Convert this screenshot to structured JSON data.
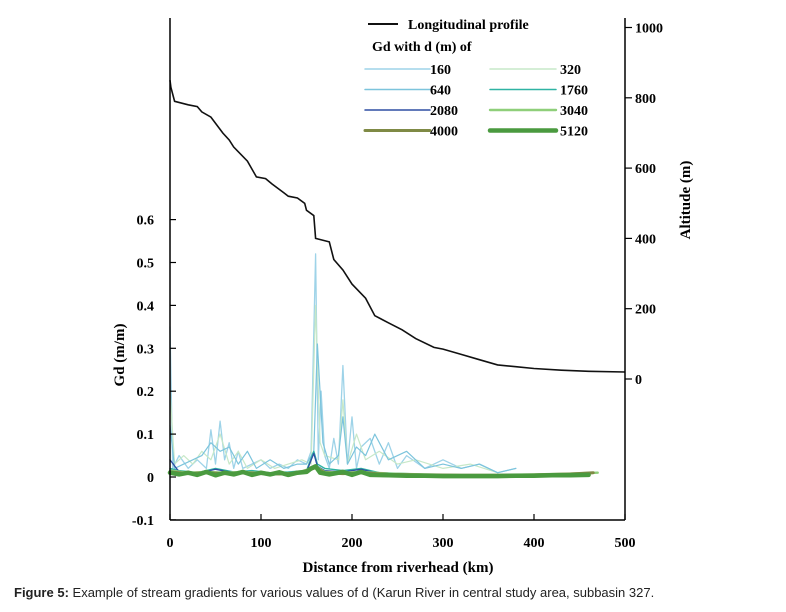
{
  "chart_data": {
    "type": "line",
    "xlabel": "Distance from riverhead (km)",
    "ylabel": "Gd (m/m)",
    "y2label": "Altitude (m)",
    "xlim": [
      0,
      500
    ],
    "ylim": [
      -0.1,
      0.6
    ],
    "y2lim": [
      0,
      1000
    ],
    "x_ticks": [
      "0",
      "100",
      "200",
      "300",
      "400",
      "500"
    ],
    "y_ticks": [
      "-0.1",
      "0",
      "0.1",
      "0.2",
      "0.3",
      "0.4",
      "0.5",
      "0.6"
    ],
    "y2_ticks": [
      "0",
      "200",
      "400",
      "600",
      "800",
      "1000"
    ],
    "legend_title": "Gd with d (m) of",
    "legend_position": "top-right",
    "profile": {
      "name": "Longitudinal profile",
      "color": "#111111",
      "axis": "right",
      "x": [
        0,
        1,
        5,
        20,
        30,
        35,
        45,
        55,
        58,
        65,
        70,
        85,
        95,
        105,
        112,
        125,
        130,
        140,
        148,
        150,
        158,
        160,
        175,
        180,
        190,
        200,
        215,
        225,
        240,
        255,
        270,
        290,
        300,
        320,
        340,
        360,
        380,
        400,
        430,
        460,
        500
      ],
      "y": [
        850,
        830,
        790,
        780,
        775,
        760,
        745,
        710,
        700,
        680,
        660,
        620,
        575,
        570,
        555,
        530,
        520,
        515,
        500,
        480,
        465,
        400,
        390,
        340,
        310,
        270,
        230,
        180,
        160,
        140,
        115,
        90,
        85,
        70,
        55,
        40,
        35,
        30,
        25,
        22,
        20
      ]
    },
    "series": [
      {
        "name": "160",
        "color": "#9ed3e8",
        "width": 1.3,
        "x": [
          0,
          3,
          10,
          20,
          30,
          40,
          45,
          50,
          55,
          60,
          65,
          70,
          75,
          80,
          90,
          100,
          110,
          120,
          130,
          140,
          150,
          155,
          160,
          163,
          166,
          170,
          175,
          180,
          185,
          190,
          195,
          200,
          205,
          210,
          220,
          230,
          240,
          250,
          260,
          280,
          300,
          320,
          340,
          360,
          380
        ],
        "y": [
          0.35,
          0.02,
          0.05,
          0.02,
          0.04,
          0.02,
          0.11,
          0.03,
          0.13,
          0.04,
          0.08,
          0.02,
          0.06,
          0.02,
          0.03,
          0.04,
          0.02,
          0.03,
          0.02,
          0.04,
          0.03,
          0.06,
          0.52,
          0.04,
          0.2,
          0.05,
          0.02,
          0.09,
          0.03,
          0.26,
          0.03,
          0.14,
          0.02,
          0.07,
          0.09,
          0.03,
          0.08,
          0.02,
          0.05,
          0.02,
          0.04,
          0.02,
          0.03,
          0.01,
          0.02
        ]
      },
      {
        "name": "320",
        "color": "#c7e8c8",
        "width": 1.2,
        "x": [
          0,
          5,
          15,
          25,
          35,
          45,
          55,
          65,
          75,
          85,
          100,
          115,
          130,
          145,
          155,
          160,
          165,
          170,
          185,
          190,
          195,
          205,
          215,
          230,
          250,
          270,
          300,
          330,
          360
        ],
        "y": [
          0.2,
          0.03,
          0.05,
          0.03,
          0.06,
          0.04,
          0.1,
          0.03,
          0.06,
          0.02,
          0.04,
          0.02,
          0.03,
          0.04,
          0.03,
          0.4,
          0.08,
          0.05,
          0.04,
          0.18,
          0.03,
          0.1,
          0.04,
          0.06,
          0.03,
          0.04,
          0.02,
          0.03,
          0.01
        ]
      },
      {
        "name": "640",
        "color": "#7cc4dc",
        "width": 1.2,
        "x": [
          0,
          5,
          15,
          25,
          35,
          45,
          55,
          65,
          75,
          85,
          95,
          110,
          125,
          140,
          150,
          158,
          162,
          168,
          175,
          185,
          190,
          195,
          205,
          215,
          225,
          240,
          260,
          280,
          300,
          320,
          340,
          360,
          380
        ],
        "y": [
          0.12,
          0.02,
          0.03,
          0.04,
          0.05,
          0.08,
          0.06,
          0.07,
          0.03,
          0.06,
          0.02,
          0.04,
          0.02,
          0.03,
          0.03,
          0.06,
          0.31,
          0.08,
          0.03,
          0.05,
          0.14,
          0.03,
          0.07,
          0.05,
          0.1,
          0.04,
          0.06,
          0.02,
          0.03,
          0.02,
          0.03,
          0.01,
          0.02
        ]
      },
      {
        "name": "1760",
        "color": "#2fb3a3",
        "width": 1.4,
        "x": [
          0,
          10,
          30,
          50,
          70,
          90,
          110,
          130,
          150,
          158,
          162,
          170,
          190,
          210,
          230,
          260,
          300,
          350,
          400,
          450
        ],
        "y": [
          0.02,
          0.015,
          0.01,
          0.02,
          0.012,
          0.015,
          0.01,
          0.012,
          0.015,
          0.06,
          0.03,
          0.02,
          0.015,
          0.02,
          0.01,
          0.008,
          0.005,
          0.005,
          0.004,
          0.004
        ]
      },
      {
        "name": "2080",
        "color": "#2e4fa3",
        "width": 1.3,
        "x": [
          0,
          10,
          30,
          50,
          70,
          90,
          110,
          130,
          150,
          158,
          162,
          170,
          190,
          210,
          230,
          260,
          300,
          350,
          400
        ],
        "y": [
          0.04,
          0.012,
          0.008,
          0.018,
          0.01,
          0.012,
          0.008,
          0.01,
          0.012,
          0.055,
          0.025,
          0.015,
          0.012,
          0.018,
          0.008,
          0.006,
          0.004,
          0.004,
          0.003
        ]
      },
      {
        "name": "3040",
        "color": "#8fcf7a",
        "width": 2.4,
        "x": [
          0,
          20,
          40,
          60,
          80,
          100,
          120,
          140,
          155,
          160,
          170,
          190,
          210,
          240,
          280,
          320,
          360,
          400,
          440,
          470
        ],
        "y": [
          0.015,
          0.01,
          0.012,
          0.01,
          0.012,
          0.01,
          0.008,
          0.01,
          0.02,
          0.025,
          0.012,
          0.01,
          0.012,
          0.008,
          0.006,
          0.005,
          0.005,
          0.006,
          0.008,
          0.01
        ]
      },
      {
        "name": "4000",
        "color": "#7f8a45",
        "width": 3,
        "x": [
          0,
          20,
          40,
          60,
          80,
          100,
          120,
          140,
          155,
          160,
          170,
          190,
          210,
          240,
          280,
          320,
          360,
          400,
          440,
          465
        ],
        "y": [
          0.012,
          0.008,
          0.01,
          0.008,
          0.01,
          0.008,
          0.007,
          0.009,
          0.018,
          0.022,
          0.01,
          0.008,
          0.01,
          0.006,
          0.005,
          0.004,
          0.004,
          0.005,
          0.007,
          0.01
        ]
      },
      {
        "name": "5120",
        "color": "#4a9a3f",
        "width": 4.5,
        "x": [
          0,
          10,
          20,
          30,
          40,
          50,
          60,
          70,
          80,
          90,
          100,
          110,
          120,
          130,
          140,
          150,
          155,
          160,
          165,
          175,
          190,
          200,
          210,
          220,
          240,
          260,
          280,
          300,
          320,
          340,
          360,
          380,
          400,
          420,
          440,
          460
        ],
        "y": [
          0.01,
          0.006,
          0.01,
          0.005,
          0.012,
          0.004,
          0.01,
          0.006,
          0.012,
          0.005,
          0.01,
          0.006,
          0.011,
          0.005,
          0.01,
          0.012,
          0.02,
          0.025,
          0.01,
          0.006,
          0.012,
          0.005,
          0.012,
          0.005,
          0.004,
          0.003,
          0.003,
          0.002,
          0.002,
          0.002,
          0.002,
          0.003,
          0.003,
          0.004,
          0.004,
          0.005
        ]
      }
    ],
    "legend_order": [
      "160",
      "320",
      "640",
      "1760",
      "2080",
      "3040",
      "4000",
      "5120"
    ]
  },
  "caption": {
    "label": "Figure 5:",
    "text": " Example of stream gradients for various values of d (Karun River in central study area, subbasin 327."
  }
}
